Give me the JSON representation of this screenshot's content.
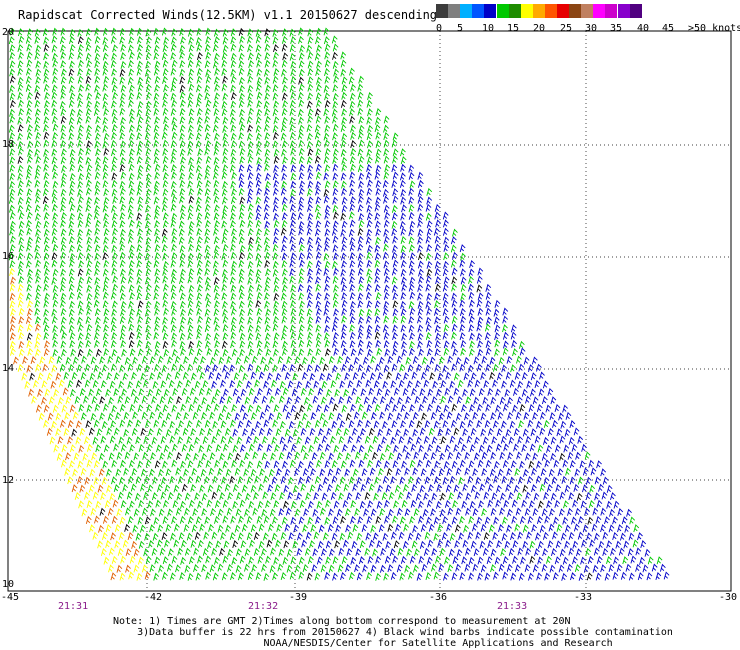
{
  "title": "Rapidscat Corrected Winds(12.5KM) v1.1 20150627 descending",
  "legend": {
    "colors": [
      "#3c3c3c",
      "#7f7f7f",
      "#00b0ff",
      "#0055ff",
      "#0000c8",
      "#00c800",
      "#1e8c00",
      "#ffff00",
      "#ffaa00",
      "#ff5500",
      "#e60000",
      "#8b4513",
      "#c08060",
      "#ff00ff",
      "#cc00cc",
      "#8800cc",
      "#500080"
    ],
    "labels": [
      "0",
      "5",
      "10",
      "15",
      "20",
      "25",
      "30",
      "35",
      "40",
      "45",
      ">50 knots"
    ]
  },
  "axes": {
    "lat_labels": [
      "20",
      "18",
      "16",
      "14",
      "12",
      "10"
    ],
    "lon_labels": [
      "-45",
      "-42",
      "-39",
      "-36",
      "-33",
      "-30"
    ],
    "time_labels": [
      "21:31",
      "21:32",
      "21:33"
    ]
  },
  "wind_colors": {
    "light": "#ffff00",
    "orange": "#e06000",
    "green": "#00c800",
    "blue": "#0000c8",
    "contam": "#000000"
  },
  "notes": {
    "line1": "Note: 1) Times are GMT 2)Times along bottom correspond to measurement at 20N",
    "line2": "3)Data buffer is 22 hrs from 20150627 4) Black wind barbs indicate possible contamination",
    "line3": "NOAA/NESDIS/Center for Satellite Applications and Research"
  }
}
